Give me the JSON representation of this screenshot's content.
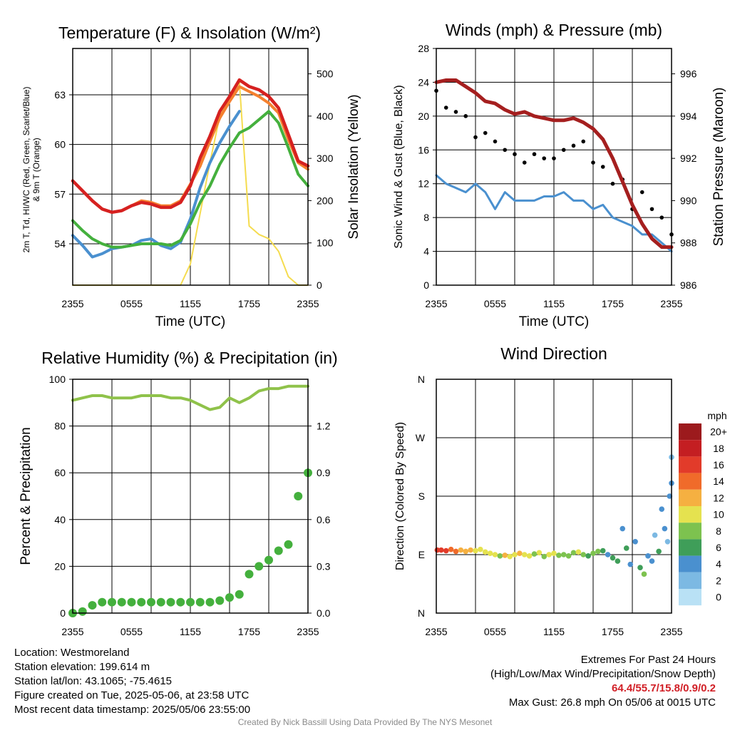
{
  "chart_data": [
    {
      "type": "line",
      "title": "Temperature (F) & Insolation (W/m²)",
      "xlabel": "Time (UTC)",
      "ylabel": "2m T, Td, HI/WC (Red, Green, Scarlet/Blue) & 9m T (Orange)",
      "ylabel_right": "Solar Insolation (Yellow)",
      "x_ticks": [
        "2355",
        "0555",
        "1155",
        "1755",
        "2355"
      ],
      "ylim": [
        51.5,
        65.8
      ],
      "y_ticks": [
        54,
        57,
        60,
        63
      ],
      "ylim_right": [
        0,
        560
      ],
      "y_ticks_right": [
        0,
        100,
        200,
        300,
        400,
        500
      ],
      "x": [
        0,
        1,
        2,
        3,
        4,
        5,
        6,
        7,
        8,
        9,
        10,
        11,
        12,
        13,
        14,
        15,
        16,
        17,
        18,
        19,
        20,
        21,
        22,
        23,
        24
      ],
      "series": [
        {
          "color": "#d62120",
          "values": [
            57.8,
            57.2,
            56.6,
            56.1,
            55.9,
            56.0,
            56.3,
            56.5,
            56.4,
            56.2,
            56.2,
            56.5,
            57.5,
            59.2,
            60.5,
            62.0,
            62.9,
            63.9,
            63.5,
            63.3,
            62.9,
            62.2,
            60.6,
            59.0,
            58.7
          ]
        },
        {
          "color": "#f5812f",
          "values": [
            57.8,
            57.2,
            56.6,
            56.1,
            55.9,
            56.0,
            56.3,
            56.6,
            56.5,
            56.3,
            56.3,
            56.6,
            57.6,
            58.7,
            60.2,
            61.6,
            62.6,
            63.5,
            63.2,
            62.9,
            62.5,
            61.9,
            60.3,
            58.9,
            58.5
          ]
        },
        {
          "color": "#44b03d",
          "values": [
            55.4,
            54.8,
            54.3,
            54.0,
            53.8,
            53.8,
            53.9,
            54.0,
            54.0,
            54.0,
            53.9,
            54.2,
            55.2,
            56.5,
            57.5,
            58.8,
            59.8,
            60.7,
            61.0,
            61.5,
            62.0,
            61.3,
            59.8,
            58.2,
            57.5
          ]
        },
        {
          "color": "#4a90cf",
          "values": [
            54.5,
            53.9,
            53.2,
            53.4,
            53.7,
            53.8,
            53.9,
            54.2,
            54.3,
            53.9,
            53.7,
            54.1,
            55.5,
            57.4,
            58.9,
            60.1,
            61.1,
            62.0,
            null,
            null,
            null,
            null,
            null,
            null,
            null
          ]
        },
        {
          "color": "#f5dc4f",
          "axis": "right",
          "values": [
            0,
            0,
            0,
            0,
            0,
            0,
            0,
            0,
            0,
            0,
            0,
            0,
            50,
            170,
            290,
            400,
            440,
            480,
            140,
            120,
            110,
            80,
            20,
            0,
            0
          ]
        }
      ]
    },
    {
      "type": "scatter",
      "title": "Winds (mph) & Pressure (mb)",
      "xlabel": "Time (UTC)",
      "ylabel": "Sonic Wind & Gust (Blue, Black)",
      "ylabel_right": "Station Pressure (Maroon)",
      "x_ticks": [
        "2355",
        "0555",
        "1155",
        "1755",
        "2355"
      ],
      "ylim": [
        0,
        28
      ],
      "y_ticks": [
        0,
        4,
        8,
        12,
        16,
        20,
        24,
        28
      ],
      "ylim_right": [
        986,
        997.2
      ],
      "y_ticks_right": [
        986,
        988,
        990,
        992,
        994,
        996
      ],
      "x": [
        0,
        1,
        2,
        3,
        4,
        5,
        6,
        7,
        8,
        9,
        10,
        11,
        12,
        13,
        14,
        15,
        16,
        17,
        18,
        19,
        20,
        21,
        22,
        23,
        24
      ],
      "series": [
        {
          "color": "#4a90cf",
          "values": [
            13.0,
            12.0,
            11.5,
            11.0,
            12.0,
            11.0,
            9.0,
            11.0,
            10.0,
            10.0,
            10.0,
            10.5,
            10.5,
            11.0,
            10.0,
            10.0,
            9.0,
            9.5,
            8.0,
            7.5,
            7.0,
            6.0,
            6.0,
            5.0,
            4.0
          ]
        },
        {
          "color": "#000000",
          "values": [
            23.0,
            21.0,
            20.5,
            20.0,
            17.5,
            18.0,
            17.0,
            16.0,
            15.5,
            14.5,
            15.5,
            15.0,
            15.0,
            16.0,
            16.5,
            17.0,
            14.5,
            14.0,
            12.0,
            12.5,
            9.0,
            11.0,
            9.0,
            8.0,
            6.0
          ]
        },
        {
          "color": "#a51f1f",
          "axis": "right",
          "values": [
            995.6,
            995.7,
            995.7,
            995.4,
            995.1,
            994.7,
            994.6,
            994.3,
            994.1,
            994.2,
            994.0,
            993.9,
            993.8,
            993.8,
            993.9,
            993.7,
            993.4,
            992.9,
            992.0,
            990.9,
            989.8,
            988.9,
            988.2,
            987.8,
            987.8
          ]
        }
      ]
    },
    {
      "type": "scatter",
      "title": "Relative Humidity (%) & Precipitation (in)",
      "xlabel": "",
      "ylabel": "Percent & Precipitation",
      "x_ticks": [
        "2355",
        "0555",
        "1155",
        "1755",
        "2355"
      ],
      "ylim": [
        0,
        100
      ],
      "y_ticks": [
        0,
        20,
        40,
        60,
        80,
        100
      ],
      "ylim_right": [
        0,
        1.5
      ],
      "y_ticks_right": [
        "0.0",
        "0.3",
        "0.6",
        "0.9",
        "1.2"
      ],
      "x": [
        0,
        1,
        2,
        3,
        4,
        5,
        6,
        7,
        8,
        9,
        10,
        11,
        12,
        13,
        14,
        15,
        16,
        17,
        18,
        19,
        20,
        21,
        22,
        23,
        24
      ],
      "series": [
        {
          "color": "#8fc24a",
          "values": [
            91,
            92,
            93,
            93,
            92,
            92,
            92,
            93,
            93,
            93,
            92,
            92,
            91,
            89,
            87,
            88,
            92,
            90,
            92,
            95,
            96,
            96,
            97,
            97,
            97
          ]
        },
        {
          "color": "#44b03d",
          "axis": "right",
          "values": [
            0.0,
            0.01,
            0.05,
            0.07,
            0.07,
            0.07,
            0.07,
            0.07,
            0.07,
            0.07,
            0.07,
            0.07,
            0.07,
            0.07,
            0.07,
            0.08,
            0.1,
            0.12,
            0.25,
            0.3,
            0.34,
            0.4,
            0.44,
            0.75,
            0.9
          ]
        }
      ]
    },
    {
      "type": "scatter",
      "title": "Wind Direction",
      "xlabel": "",
      "ylabel": "Direction (Colored By Speed)",
      "x_ticks": [
        "2355",
        "0555",
        "1155",
        "1755",
        "2355"
      ],
      "y_ticks": [
        "N",
        "E",
        "S",
        "W",
        "N"
      ],
      "ylim": [
        0,
        360
      ],
      "legend_title": "mph",
      "legend": [
        {
          "label": "0",
          "color": "#b9e1f5"
        },
        {
          "label": "2",
          "color": "#7cb9e3"
        },
        {
          "label": "4",
          "color": "#4a90cf"
        },
        {
          "label": "6",
          "color": "#3f9e59"
        },
        {
          "label": "8",
          "color": "#7dc24f"
        },
        {
          "label": "10",
          "color": "#e5e24f"
        },
        {
          "label": "12",
          "color": "#f5b041"
        },
        {
          "label": "14",
          "color": "#f06b2a"
        },
        {
          "label": "16",
          "color": "#e23b2a"
        },
        {
          "label": "18",
          "color": "#c41e22"
        },
        {
          "label": "20+",
          "color": "#9c1a1d"
        }
      ],
      "points_x": [
        0.1,
        0.5,
        1.0,
        1.5,
        2.0,
        2.5,
        3.0,
        3.5,
        4.0,
        4.5,
        5.0,
        5.5,
        6.0,
        6.5,
        7.0,
        7.5,
        8.0,
        8.5,
        9.0,
        9.5,
        10.0,
        10.5,
        11.0,
        11.5,
        12.0,
        12.5,
        13.0,
        13.5,
        14.0,
        14.5,
        15.0,
        15.5,
        16.0,
        16.5,
        17.0,
        17.5,
        18.0,
        18.5,
        19.0,
        19.4,
        19.8,
        20.3,
        20.8,
        21.2,
        21.6,
        22.0,
        22.3,
        22.7,
        23.0,
        23.3,
        23.6,
        23.8,
        24.0,
        24.0
      ],
      "points_dir": [
        97,
        97,
        96,
        98,
        95,
        97,
        95,
        97,
        96,
        98,
        94,
        92,
        90,
        88,
        89,
        87,
        90,
        92,
        90,
        88,
        91,
        93,
        87,
        90,
        92,
        89,
        90,
        88,
        93,
        94,
        90,
        88,
        92,
        95,
        96,
        90,
        85,
        80,
        130,
        100,
        75,
        110,
        70,
        60,
        88,
        80,
        120,
        95,
        160,
        130,
        110,
        180,
        200,
        240
      ],
      "points_speed": [
        15,
        16,
        15,
        14,
        13,
        12,
        12,
        11,
        10,
        10,
        9,
        9,
        10,
        8,
        11,
        9,
        10,
        12,
        10,
        9,
        8,
        9,
        8,
        10,
        9,
        8,
        7,
        8,
        7,
        9,
        8,
        6,
        7,
        8,
        5,
        4,
        6,
        5,
        4,
        6,
        3,
        4,
        5,
        8,
        3,
        4,
        2,
        5,
        3,
        4,
        2,
        3,
        3,
        2
      ]
    }
  ],
  "info": {
    "location": "Location: Westmoreland",
    "elevation": "Station elevation: 199.614 m",
    "latlon": "Station lat/lon: 43.1065; -75.4615",
    "created": "Figure created on Tue, 2025-05-06, at 23:58 UTC",
    "recent": "Most recent data timestamp: 2025/05/06 23:55:00"
  },
  "extremes": {
    "title": "Extremes For Past 24 Hours",
    "subtitle": "(High/Low/Max Wind/Precipitation/Snow Depth)",
    "values": "64.4/55.7/15.8/0.9/0.2",
    "max_gust": "Max Gust: 26.8 mph On 05/06 at 0015 UTC"
  },
  "credit": "Created By Nick Bassill Using Data Provided By The NYS Mesonet"
}
